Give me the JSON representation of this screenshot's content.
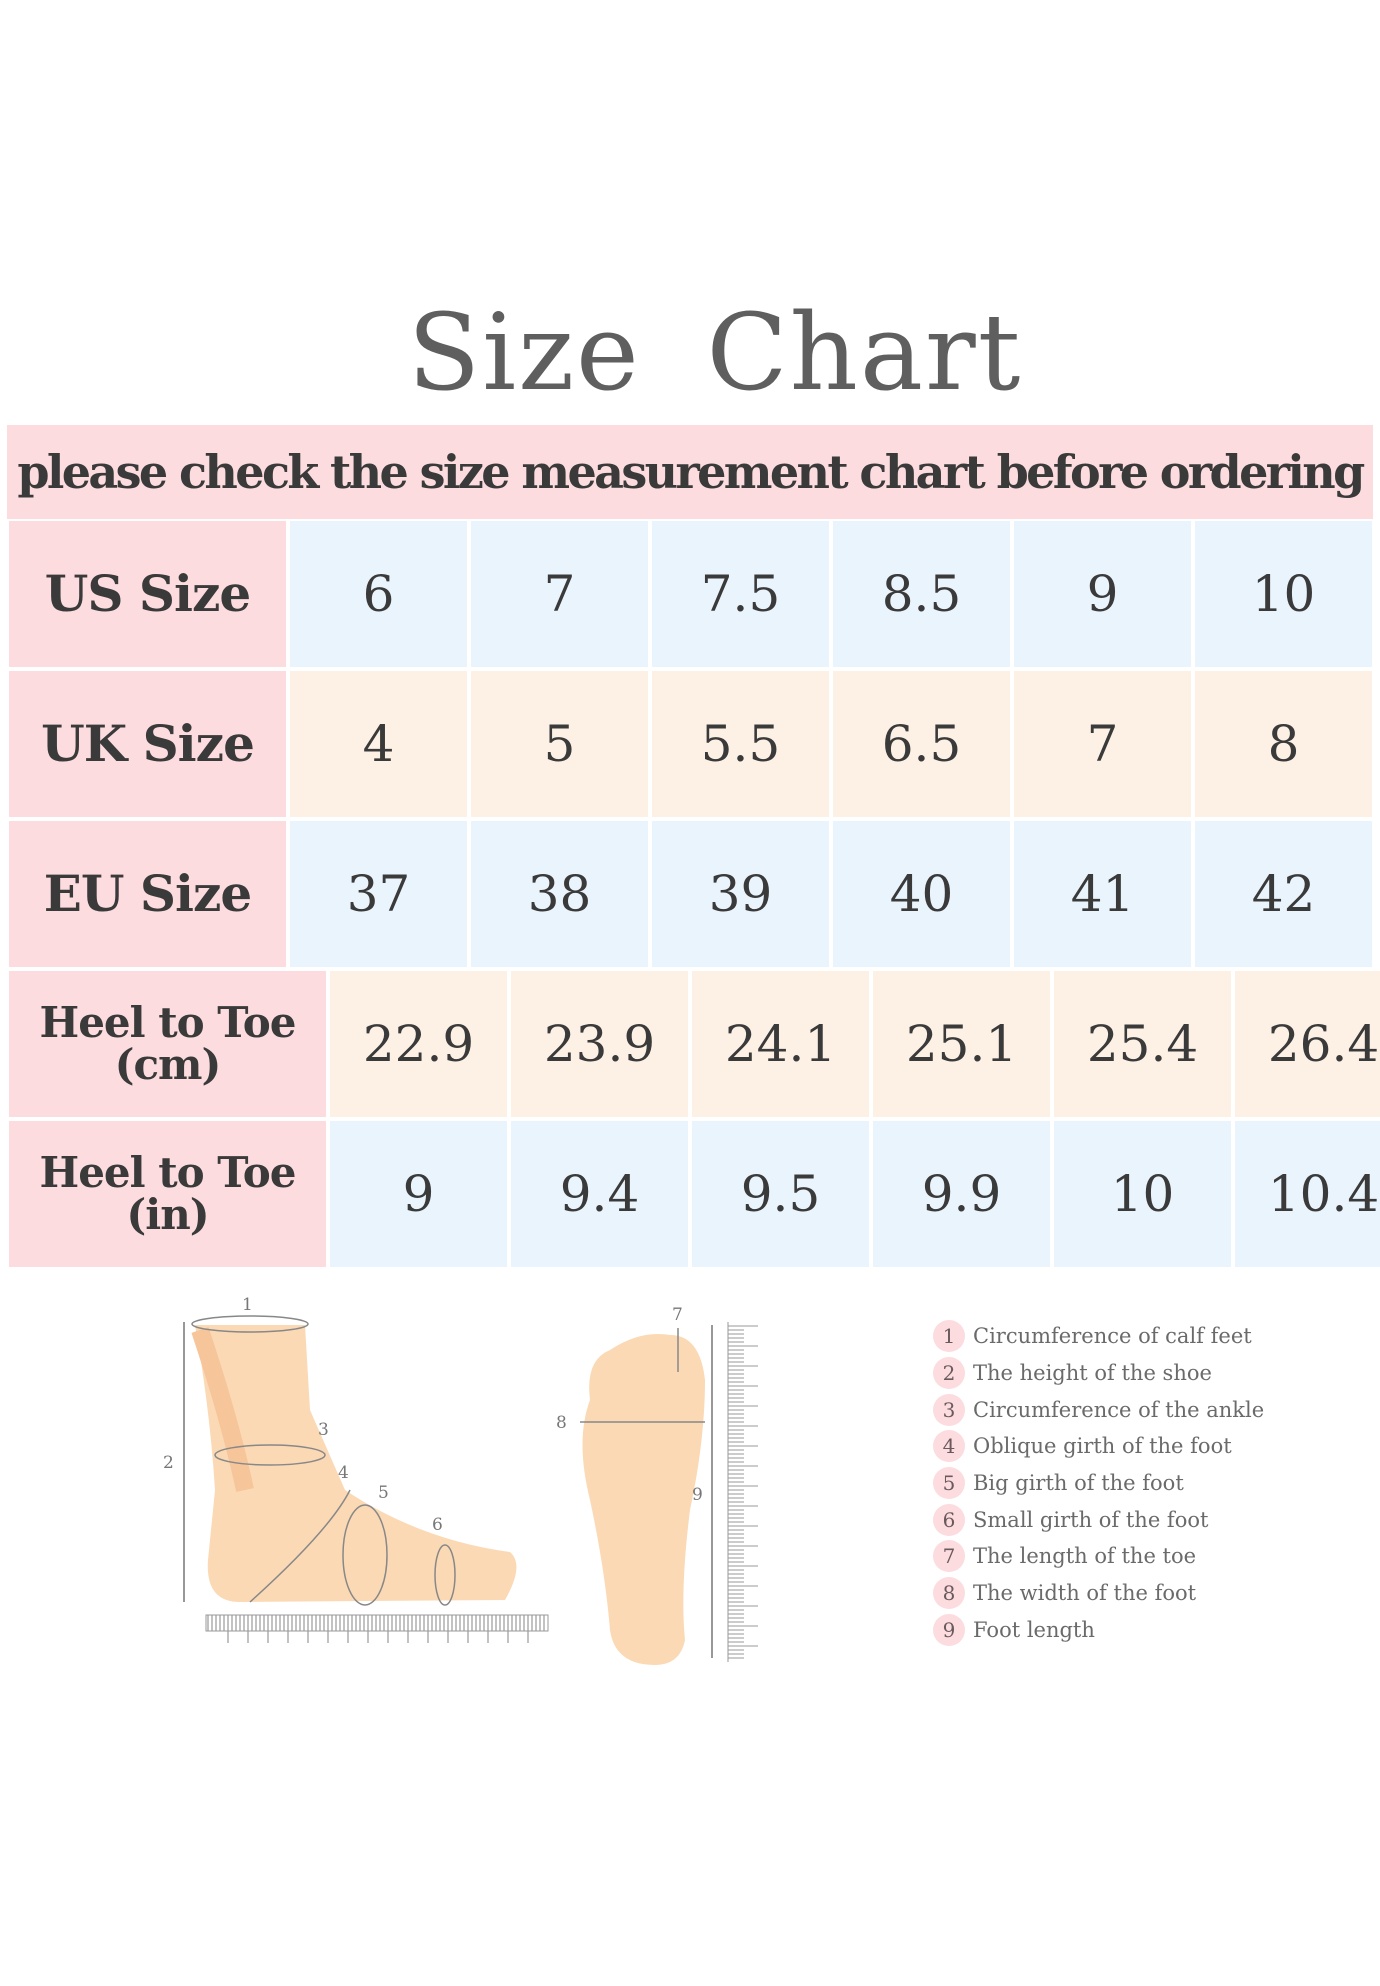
{
  "title": "Size Chart",
  "banner": "please check the size measurement chart before ordering",
  "rows": [
    {
      "label": "US Size",
      "values": [
        "6",
        "7",
        "7.5",
        "8.5",
        "9",
        "10"
      ]
    },
    {
      "label": "UK Size",
      "values": [
        "4",
        "5",
        "5.5",
        "6.5",
        "7",
        "8"
      ]
    },
    {
      "label": "EU Size",
      "values": [
        "37",
        "38",
        "39",
        "40",
        "41",
        "42"
      ]
    },
    {
      "label": "Heel to Toe (cm)",
      "values": [
        "22.9",
        "23.9",
        "24.1",
        "25.1",
        "25.4",
        "26.4"
      ]
    },
    {
      "label": "Heel to Toe (in)",
      "values": [
        "9",
        "9.4",
        "9.5",
        "9.9",
        "10",
        "10.4"
      ]
    }
  ],
  "legend": [
    {
      "n": "1",
      "text": "Circumference of calf feet"
    },
    {
      "n": "2",
      "text": "The height of the shoe"
    },
    {
      "n": "3",
      "text": "Circumference of the ankle"
    },
    {
      "n": "4",
      "text": "Oblique girth of the foot"
    },
    {
      "n": "5",
      "text": "Big girth of the foot"
    },
    {
      "n": "6",
      "text": "Small girth of the foot"
    },
    {
      "n": "7",
      "text": "The length of the toe"
    },
    {
      "n": "8",
      "text": "The width of the foot"
    },
    {
      "n": "9",
      "text": "Foot length"
    }
  ],
  "colors": {
    "label_bg": "#fcdcdf",
    "blue_row": "#eaf4fd",
    "peach_row": "#fdf1e6",
    "skin": "#fbd9b4"
  }
}
